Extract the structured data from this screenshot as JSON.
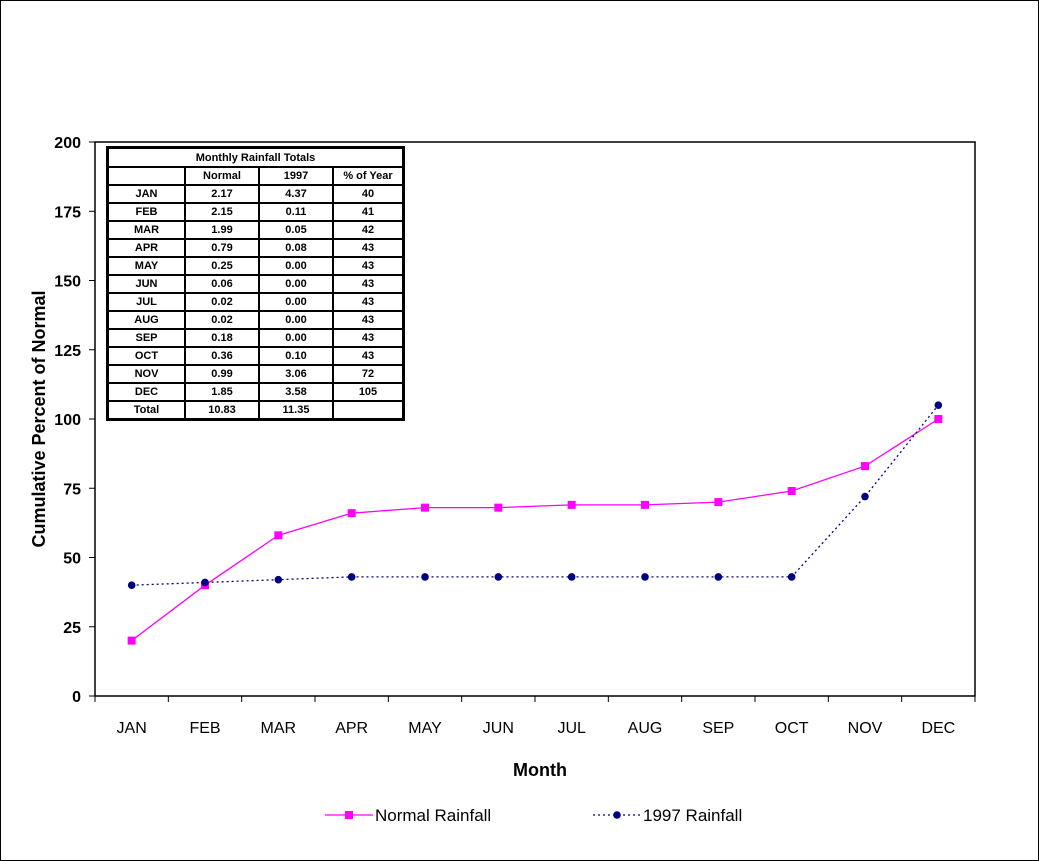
{
  "chart_data": {
    "type": "line",
    "categories": [
      "JAN",
      "FEB",
      "MAR",
      "APR",
      "MAY",
      "JUN",
      "JUL",
      "AUG",
      "SEP",
      "OCT",
      "NOV",
      "DEC"
    ],
    "series": [
      {
        "name": "Normal Rainfall",
        "values": [
          20,
          40,
          58,
          66,
          68,
          68,
          69,
          69,
          70,
          74,
          83,
          100
        ],
        "color": "#ff00ff",
        "style": "solid",
        "marker": "square"
      },
      {
        "name": "1997 Rainfall",
        "values": [
          40,
          41,
          42,
          43,
          43,
          43,
          43,
          43,
          43,
          43,
          72,
          105
        ],
        "color": "#000080",
        "style": "dotted",
        "marker": "circle"
      }
    ],
    "xlabel": "Month",
    "ylabel": "Cumulative Percent of Normal",
    "ylim": [
      0,
      200
    ],
    "yticks": [
      0,
      25,
      50,
      75,
      100,
      125,
      150,
      175,
      200
    ],
    "grid": false,
    "legend": "bottom"
  },
  "table": {
    "title": "Monthly Rainfall Totals",
    "headers": [
      "",
      "Normal",
      "1997",
      "% of Year"
    ],
    "rows": [
      [
        "JAN",
        "2.17",
        "4.37",
        "40"
      ],
      [
        "FEB",
        "2.15",
        "0.11",
        "41"
      ],
      [
        "MAR",
        "1.99",
        "0.05",
        "42"
      ],
      [
        "APR",
        "0.79",
        "0.08",
        "43"
      ],
      [
        "MAY",
        "0.25",
        "0.00",
        "43"
      ],
      [
        "JUN",
        "0.06",
        "0.00",
        "43"
      ],
      [
        "JUL",
        "0.02",
        "0.00",
        "43"
      ],
      [
        "AUG",
        "0.02",
        "0.00",
        "43"
      ],
      [
        "SEP",
        "0.18",
        "0.00",
        "43"
      ],
      [
        "OCT",
        "0.36",
        "0.10",
        "43"
      ],
      [
        "NOV",
        "0.99",
        "3.06",
        "72"
      ],
      [
        "DEC",
        "1.85",
        "3.58",
        "105"
      ],
      [
        "Total",
        "10.83",
        "11.35",
        ""
      ]
    ]
  }
}
